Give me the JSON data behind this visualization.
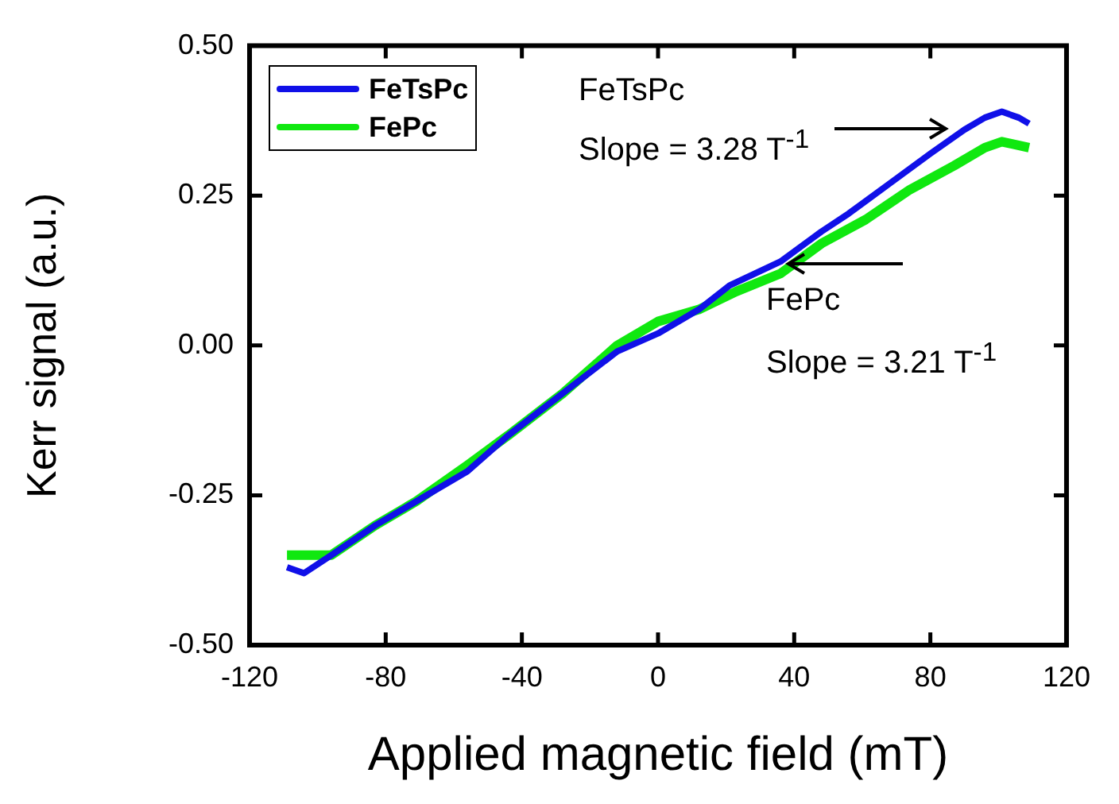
{
  "chart_data": {
    "type": "line",
    "xlabel": "Applied magnetic field (mT)",
    "ylabel": "Kerr signal (a.u.)",
    "xlim": [
      -120,
      120
    ],
    "xticks": [
      -120,
      -80,
      -40,
      0,
      40,
      80,
      120
    ],
    "ylim": [
      -0.5,
      0.5
    ],
    "yticks": [
      {
        "value": -0.5,
        "label": "-0.50"
      },
      {
        "value": -0.25,
        "label": "-0.25"
      },
      {
        "value": 0,
        "label": "0.00"
      },
      {
        "value": 0.25,
        "label": "0.25"
      },
      {
        "value": 0.5,
        "label": "0.50"
      }
    ],
    "grid": false,
    "legend": "top left",
    "marker": "none",
    "line_style": "solid",
    "annotations": [
      "FeTsPc",
      "Slope = 3.28 T$^{-1}$",
      "FePc",
      "Slope = 3.21 T$^{-1}$"
    ],
    "series": [
      {
        "name": "FeTsPc",
        "color": "#1010e8",
        "x": [
          -109,
          -104,
          -96,
          -83,
          -71,
          -56,
          -44,
          -28,
          -12,
          0,
          12,
          21,
          36,
          48,
          56,
          68,
          80,
          90,
          96,
          101,
          106,
          109
        ],
        "values": [
          -0.37,
          -0.38,
          -0.35,
          -0.3,
          -0.26,
          -0.21,
          -0.15,
          -0.08,
          -0.01,
          0.02,
          0.06,
          0.1,
          0.14,
          0.19,
          0.22,
          0.27,
          0.32,
          0.36,
          0.38,
          0.39,
          0.38,
          0.37
        ]
      },
      {
        "name": "FePc",
        "color": "#10e810",
        "x": [
          -109,
          -96,
          -83,
          -71,
          -56,
          -44,
          -28,
          -12,
          0,
          12,
          23,
          36,
          48,
          61,
          74,
          87,
          96,
          101,
          109
        ],
        "values": [
          -0.35,
          -0.35,
          -0.3,
          -0.26,
          -0.2,
          -0.15,
          -0.08,
          0,
          0.04,
          0.06,
          0.09,
          0.12,
          0.17,
          0.21,
          0.26,
          0.3,
          0.33,
          0.34,
          0.33
        ]
      }
    ]
  }
}
